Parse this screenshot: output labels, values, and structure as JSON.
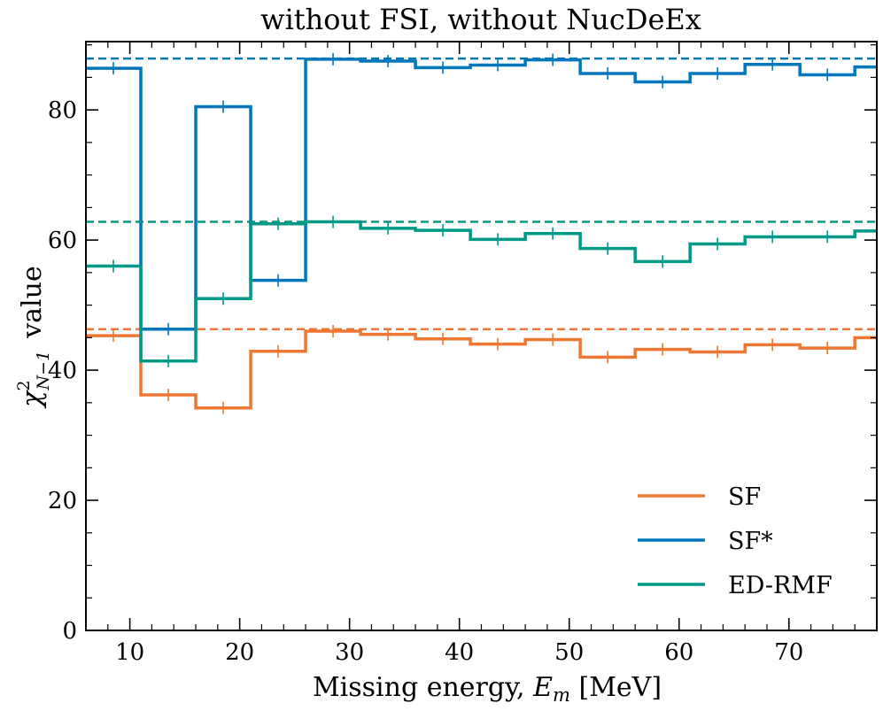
{
  "chart_data": {
    "type": "line",
    "style": "step",
    "title": "without FSI, without NucDeEx",
    "xlabel": "Missing energy, E_m [MeV]",
    "xlabel_parts": {
      "text": "Missing energy, ",
      "var": "E",
      "sub": "m",
      "unit": " [MeV]"
    },
    "ylabel": "χ²_{N−1} value",
    "ylabel_parts": {
      "chi": "χ",
      "sup": "2",
      "sub": "N−1",
      "rest": "value"
    },
    "xlim": [
      6,
      78
    ],
    "ylim": [
      0,
      90.5
    ],
    "x_ticks": [
      10,
      20,
      30,
      40,
      50,
      60,
      70
    ],
    "y_ticks": [
      0,
      20,
      40,
      60,
      80
    ],
    "bin_edges": [
      6,
      11,
      16,
      21,
      26,
      31,
      36,
      41,
      46,
      51,
      56,
      61,
      66,
      71,
      76,
      78
    ],
    "grid": false,
    "legend_position": "lower-right",
    "series": [
      {
        "name": "SF",
        "color": "#EE7733",
        "values": [
          45.3,
          36.2,
          34.2,
          42.9,
          46.0,
          45.5,
          44.8,
          44.0,
          44.7,
          42.0,
          43.2,
          42.8,
          43.9,
          43.4,
          45.0
        ],
        "reference": 46.3
      },
      {
        "name": "SF*",
        "color": "#0077BB",
        "values": [
          86.4,
          46.3,
          80.5,
          53.8,
          87.8,
          87.5,
          86.5,
          86.9,
          87.7,
          85.6,
          84.3,
          85.6,
          87.0,
          85.4,
          86.6
        ],
        "reference": 87.9
      },
      {
        "name": "ED-RMF",
        "color": "#009988",
        "values": [
          56.0,
          41.4,
          51.0,
          62.5,
          62.8,
          61.8,
          61.5,
          60.1,
          61.0,
          58.7,
          56.7,
          59.4,
          60.5,
          60.5,
          61.4
        ],
        "reference": 62.8
      }
    ]
  }
}
